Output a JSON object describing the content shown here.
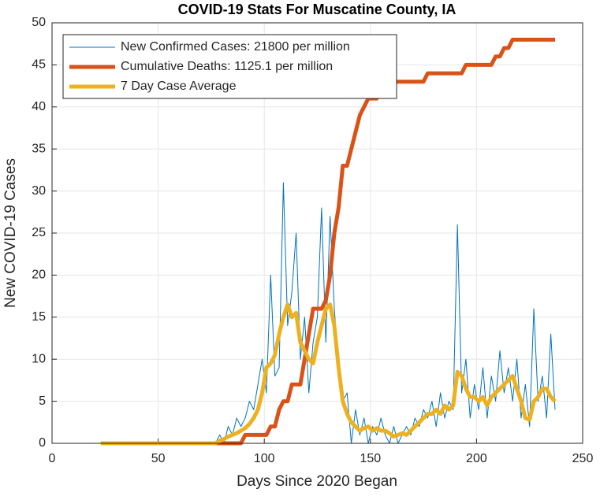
{
  "chart_data": {
    "type": "line",
    "title": "COVID-19 Stats For Muscatine County, IA",
    "xlabel": "Days Since 2020 Began",
    "ylabel": "New COVID-19 Cases",
    "x": [
      23,
      25,
      27,
      29,
      31,
      33,
      35,
      37,
      39,
      41,
      43,
      45,
      47,
      49,
      51,
      53,
      55,
      57,
      59,
      61,
      63,
      65,
      67,
      69,
      71,
      73,
      75,
      77,
      79,
      81,
      83,
      85,
      87,
      89,
      91,
      93,
      95,
      97,
      99,
      101,
      103,
      105,
      107,
      109,
      111,
      113,
      115,
      117,
      119,
      121,
      123,
      125,
      127,
      129,
      131,
      133,
      135,
      137,
      139,
      141,
      143,
      145,
      147,
      149,
      151,
      153,
      155,
      157,
      159,
      161,
      163,
      165,
      167,
      169,
      171,
      173,
      175,
      177,
      179,
      181,
      183,
      185,
      187,
      189,
      191,
      193,
      195,
      197,
      199,
      201,
      203,
      205,
      207,
      209,
      211,
      213,
      215,
      217,
      219,
      221,
      223,
      225,
      227,
      229,
      231,
      233,
      235,
      237
    ],
    "series": [
      {
        "name": "New Confirmed Cases: 21800 per million",
        "color": "#0072BD",
        "width": 1,
        "values": [
          0,
          0,
          0,
          0,
          0,
          0,
          0,
          0,
          0,
          0,
          0,
          0,
          0,
          0,
          0,
          0,
          0,
          0,
          0,
          0,
          0,
          0,
          0,
          0,
          0,
          0,
          0,
          0,
          1,
          0,
          2,
          1,
          3,
          2,
          3,
          5,
          4,
          7,
          10,
          6,
          20,
          8,
          9,
          31,
          14,
          18,
          25,
          10,
          15,
          6,
          12,
          15,
          28,
          12,
          27,
          16,
          9,
          5,
          6,
          0,
          4,
          1,
          3,
          0,
          2,
          1,
          3,
          1,
          0,
          2,
          0,
          1,
          2,
          1,
          3,
          2,
          4,
          3,
          5,
          2,
          6,
          3,
          5,
          4,
          26,
          6,
          10,
          3,
          7,
          4,
          9,
          3,
          8,
          5,
          11,
          6,
          9,
          5,
          10,
          3,
          7,
          2,
          16,
          5,
          8,
          3,
          13,
          4
        ]
      },
      {
        "name": "Cumulative Deaths: 1125.1 per million",
        "color": "#D95319",
        "width": 5,
        "values": [
          0,
          0,
          0,
          0,
          0,
          0,
          0,
          0,
          0,
          0,
          0,
          0,
          0,
          0,
          0,
          0,
          0,
          0,
          0,
          0,
          0,
          0,
          0,
          0,
          0,
          0,
          0,
          0,
          0,
          0,
          0,
          0,
          0,
          0,
          1,
          1,
          1,
          1,
          1,
          1,
          2,
          2,
          4,
          5,
          5,
          7,
          7,
          7,
          10,
          13,
          16,
          16,
          16,
          17,
          20,
          25,
          28,
          33,
          33,
          35,
          37,
          39,
          40,
          41,
          41,
          41,
          42,
          42,
          43,
          43,
          43,
          43,
          43,
          43,
          43,
          43,
          43,
          44,
          44,
          44,
          44,
          44,
          44,
          44,
          44,
          44,
          45,
          45,
          45,
          45,
          45,
          45,
          45,
          46,
          46,
          47,
          47,
          48,
          48,
          48,
          48,
          48,
          48,
          48,
          48,
          48,
          48,
          48
        ]
      },
      {
        "name": "7 Day Case Average",
        "color": "#EDB120",
        "width": 5,
        "values": [
          0,
          0,
          0,
          0,
          0,
          0,
          0,
          0,
          0,
          0,
          0,
          0,
          0,
          0,
          0,
          0,
          0,
          0,
          0,
          0,
          0,
          0,
          0,
          0,
          0,
          0,
          0,
          0,
          0.3,
          0.5,
          0.8,
          1,
          1.2,
          1.5,
          1.8,
          2.3,
          3,
          4,
          6,
          9,
          9.5,
          10.5,
          13,
          15,
          16.5,
          15,
          15.5,
          12,
          11,
          10,
          9.5,
          12,
          14,
          16,
          16.5,
          14,
          9,
          5,
          3.5,
          2.5,
          2,
          1.5,
          1.8,
          2,
          1.5,
          1.8,
          1.5,
          1.5,
          1.2,
          0.8,
          1,
          1.2,
          1,
          1.5,
          2,
          2.5,
          3,
          3.5,
          3.5,
          4,
          3.5,
          4.5,
          4,
          4.5,
          8.5,
          8,
          6.5,
          5.5,
          5.5,
          5,
          5.5,
          4.5,
          5.5,
          6,
          6.5,
          7,
          7.5,
          8,
          6.5,
          5,
          3,
          2.8,
          5,
          5.5,
          6.5,
          6.5,
          5.5,
          5
        ]
      }
    ],
    "xlim": [
      0,
      250
    ],
    "xticks": [
      0,
      50,
      100,
      150,
      200,
      250
    ],
    "ylim": [
      0,
      50
    ],
    "yticks": [
      0,
      5,
      10,
      15,
      20,
      25,
      30,
      35,
      40,
      45,
      50
    ],
    "grid": true,
    "legend": "northwest"
  }
}
